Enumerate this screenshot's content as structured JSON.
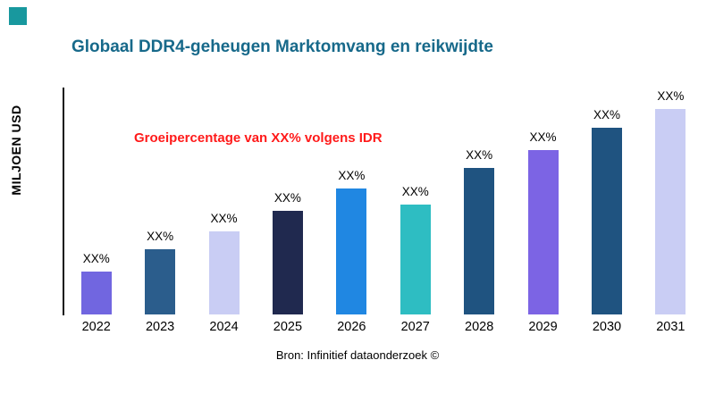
{
  "page": {
    "title": "Globaal DDR4-geheugen Marktomvang en reikwijdte",
    "title_color": "#17698a",
    "annotation": "Groeipercentage van XX% volgens IDR",
    "annotation_color": "#ff1a1a",
    "ylabel": "MILJOEN USD",
    "source": "Bron: Infinitief dataonderzoek ©",
    "corner_color": "#18989e"
  },
  "chart_data": {
    "type": "bar",
    "title": "Globaal DDR4-geheugen Marktomvang en reikwijdte",
    "xlabel": "",
    "ylabel": "MILJOEN USD",
    "ylim": [
      0,
      100
    ],
    "grid": false,
    "legend": "none",
    "categories": [
      "2022",
      "2023",
      "2024",
      "2025",
      "2026",
      "2027",
      "2028",
      "2029",
      "2030",
      "2031"
    ],
    "values": [
      19,
      29,
      37,
      46,
      56,
      49,
      65,
      73,
      83,
      92
    ],
    "value_labels": [
      "XX%",
      "XX%",
      "XX%",
      "XX%",
      "XX%",
      "XX%",
      "XX%",
      "XX%",
      "XX%",
      "XX%"
    ],
    "bar_colors": [
      "#7166e0",
      "#2b5d8c",
      "#c9cdf4",
      "#20294f",
      "#2087e2",
      "#2ebdc2",
      "#1f5380",
      "#7c64e4",
      "#1f5380",
      "#c9cdf4"
    ],
    "annotation": "Groeipercentage van XX% volgens IDR"
  }
}
